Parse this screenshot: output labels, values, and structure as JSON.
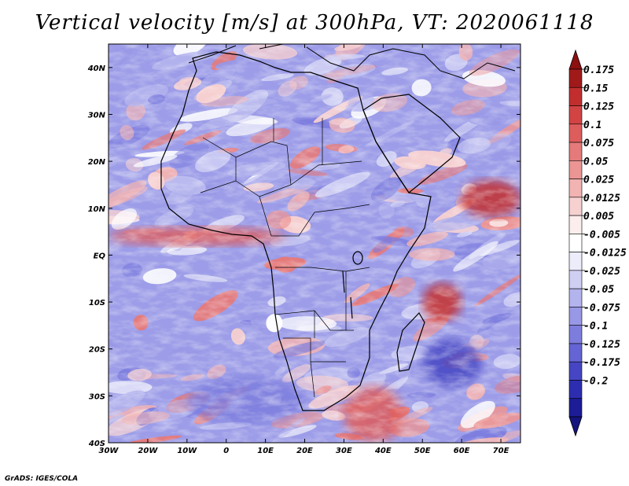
{
  "title": "Vertical velocity [m/s] at 300hPa, VT: 2020061118",
  "credit": "GrADS: IGES/COLA",
  "map": {
    "lon_range": [
      -30,
      75
    ],
    "lat_range": [
      -40,
      45
    ],
    "x_ticks": [
      "30W",
      "20W",
      "10W",
      "0",
      "10E",
      "20E",
      "30E",
      "40E",
      "50E",
      "60E",
      "70E"
    ],
    "y_ticks": [
      "40N",
      "30N",
      "20N",
      "10N",
      "EQ",
      "10S",
      "20S",
      "30S",
      "40S"
    ],
    "features": [
      {
        "name": "updraft-band-itcz",
        "lon": [
          -30,
          15
        ],
        "lat": [
          2,
          6
        ],
        "level": 0.1
      },
      {
        "name": "updraft-arabian-sea",
        "lon": [
          60,
          75
        ],
        "lat": [
          8,
          16
        ],
        "level": 0.15
      },
      {
        "name": "updraft-southwest-indian-ocean",
        "lon": [
          50,
          60
        ],
        "lat": [
          -14,
          -6
        ],
        "level": 0.15
      },
      {
        "name": "downdraft-mascarene",
        "lon": [
          50,
          65
        ],
        "lat": [
          -28,
          -18
        ],
        "level": -0.15
      },
      {
        "name": "downdraft-south-atlantic",
        "lon": [
          -10,
          20
        ],
        "lat": [
          -36,
          -26
        ],
        "level": -0.1
      },
      {
        "name": "updraft-southeast-africa",
        "lon": [
          30,
          45
        ],
        "lat": [
          -40,
          -28
        ],
        "level": 0.1
      }
    ]
  },
  "colorbar": {
    "levels": [
      "0.175",
      "0.15",
      "0.125",
      "0.1",
      "0.075",
      "0.05",
      "0.025",
      "0.0125",
      "0.005",
      "-0.005",
      "-0.0125",
      "-0.025",
      "-0.05",
      "-0.075",
      "-0.1",
      "-0.125",
      "-0.175",
      "-0.2"
    ],
    "colors": [
      "#a01a1a",
      "#c22e2e",
      "#d24444",
      "#dd5d5d",
      "#e57a7a",
      "#ec9595",
      "#f2b3b3",
      "#f7d0d0",
      "#fdeeee",
      "#ffffff",
      "#ececfb",
      "#cfcff4",
      "#b3b3ed",
      "#9898e6",
      "#7d7dde",
      "#6464d4",
      "#4646c4",
      "#2d2db0",
      "#1c1c96"
    ],
    "top_arrow_color": "#8c1010",
    "bottom_arrow_color": "#14147f"
  }
}
